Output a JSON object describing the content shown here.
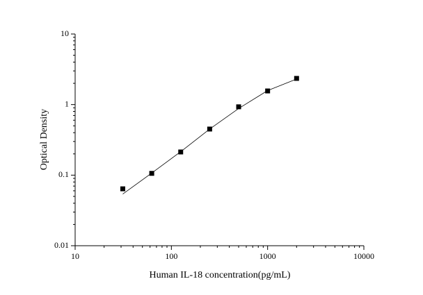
{
  "chart_data": {
    "type": "scatter",
    "xlabel": "Human IL-18 concentration(pg/mL)",
    "ylabel": "Optical Density",
    "xscale": "log",
    "yscale": "log",
    "xlim": [
      10,
      10000
    ],
    "ylim": [
      0.01,
      10
    ],
    "xticks": [
      10,
      100,
      1000,
      10000
    ],
    "yticks": [
      0.01,
      0.1,
      1,
      10
    ],
    "series": [
      {
        "color": "#000000",
        "marker": "square",
        "x": [
          31.25,
          62.5,
          125,
          250,
          500,
          1000,
          2000
        ],
        "values": [
          0.064,
          0.106,
          0.213,
          0.45,
          0.93,
          1.56,
          2.35
        ]
      },
      {
        "color": "#000000",
        "marker": "line",
        "x": [
          31.25,
          62.5,
          125,
          250,
          500,
          1000,
          2000
        ],
        "values": [
          0.054,
          0.107,
          0.215,
          0.45,
          0.88,
          1.58,
          2.3
        ]
      }
    ]
  }
}
